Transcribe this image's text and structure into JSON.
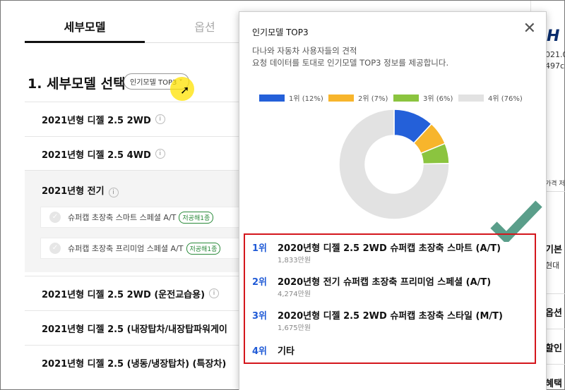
{
  "tabs": [
    {
      "label": "세부모델",
      "active": true
    },
    {
      "label": "옵션",
      "active": false
    }
  ],
  "section": {
    "title": "1. 세부모델 선택",
    "popular_chip": "인기모델 TOP3"
  },
  "models": [
    {
      "label": "2021년형 디젤 2.5 2WD"
    },
    {
      "label": "2021년형 디젤 2.5 4WD"
    },
    {
      "label": "2021년형 전기"
    },
    {
      "label": "2021년형 디젤 2.5 2WD (운전교습용)"
    },
    {
      "label": "2021년형 디젤 2.5 (내장탑차/내장탑파워게이"
    },
    {
      "label": "2021년형 디젤 2.5 (냉동/냉장탑차) (특장차)"
    }
  ],
  "ev_options": [
    {
      "label": "슈퍼캡 초장축 스마트 스페셜 A/T",
      "badge": "저공해1종"
    },
    {
      "label": "슈퍼캡 초장축 프리미엄 스페셜 A/T",
      "badge": "저공해1종"
    }
  ],
  "right_panel": {
    "texts": [
      "021.0",
      "497c",
      "가격 저",
      "기본",
      "현대",
      "옵션",
      "할인",
      "혜택"
    ]
  },
  "modal": {
    "title": "인기모델 TOP3",
    "close_label": "✕",
    "desc_line1": "다나와 자동차 사용자들의 견적",
    "desc_line2": "요청 데이터를 토대로 인기모델 TOP3 정보를 제공합니다.",
    "ranks": [
      {
        "rank": "1위",
        "name": "2020년형 디젤 2.5 2WD 슈퍼캡 초장축 스마트 (A/T)",
        "price": "1,833만원"
      },
      {
        "rank": "2위",
        "name": "2020년형 전기 슈퍼캡 초장축 프리미엄 스페셜 (A/T)",
        "price": "4,274만원"
      },
      {
        "rank": "3위",
        "name": "2020년형 디젤 2.5 2WD 슈퍼캡 초장축 스타일 (M/T)",
        "price": "1,675만원"
      },
      {
        "rank": "4위",
        "name": "기타",
        "price": ""
      }
    ]
  },
  "chart_data": {
    "type": "pie",
    "donut": true,
    "categories": [
      "1위 (12%)",
      "2위 (7%)",
      "3위 (6%)",
      "4위 (76%)"
    ],
    "values": [
      12,
      7,
      6,
      76
    ],
    "colors": [
      "#2460d9",
      "#f7b52c",
      "#8bc43f",
      "#e2e2e2"
    ],
    "legend_position": "top"
  }
}
